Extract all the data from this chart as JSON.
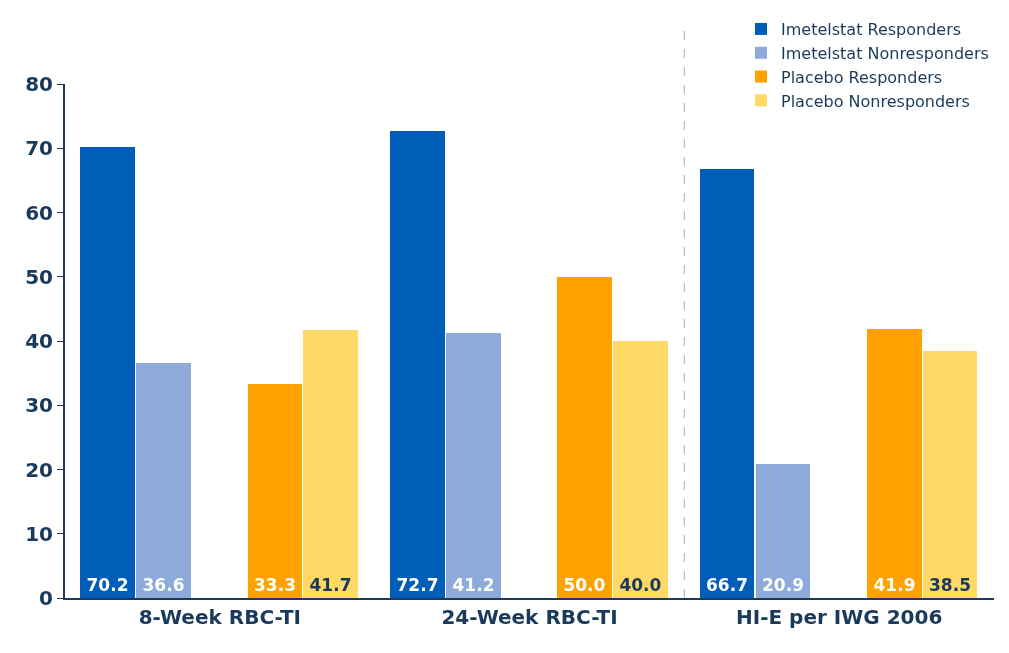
{
  "chart_data": {
    "type": "bar",
    "categories": [
      "8-Week RBC-TI",
      "24-Week RBC-TI",
      "HI-E per IWG 2006"
    ],
    "series": [
      {
        "name": "Imetelstat Responders",
        "color": "#005eb8",
        "values": [
          70.2,
          72.7,
          66.7
        ],
        "value_labels": [
          "70.2",
          "72.7",
          "66.7"
        ]
      },
      {
        "name": "Imetelstat Nonresponders",
        "color": "#8eaadb",
        "values": [
          36.6,
          41.2,
          20.9
        ],
        "value_labels": [
          "36.6",
          "41.2",
          "20.9"
        ]
      },
      {
        "name": "Placebo Responders",
        "color": "#ffa100",
        "values": [
          33.3,
          50.0,
          41.9
        ],
        "value_labels": [
          "33.3",
          "50.0",
          "41.9"
        ]
      },
      {
        "name": "Placebo Nonresponders",
        "color": "#ffd866",
        "values": [
          41.7,
          40.0,
          38.5
        ],
        "value_labels": [
          "41.7",
          "40.0",
          "38.5"
        ]
      }
    ],
    "ylim": [
      0,
      80
    ],
    "yticks": [
      0,
      10,
      20,
      30,
      40,
      50,
      60,
      70,
      80
    ],
    "legend": "top right"
  }
}
